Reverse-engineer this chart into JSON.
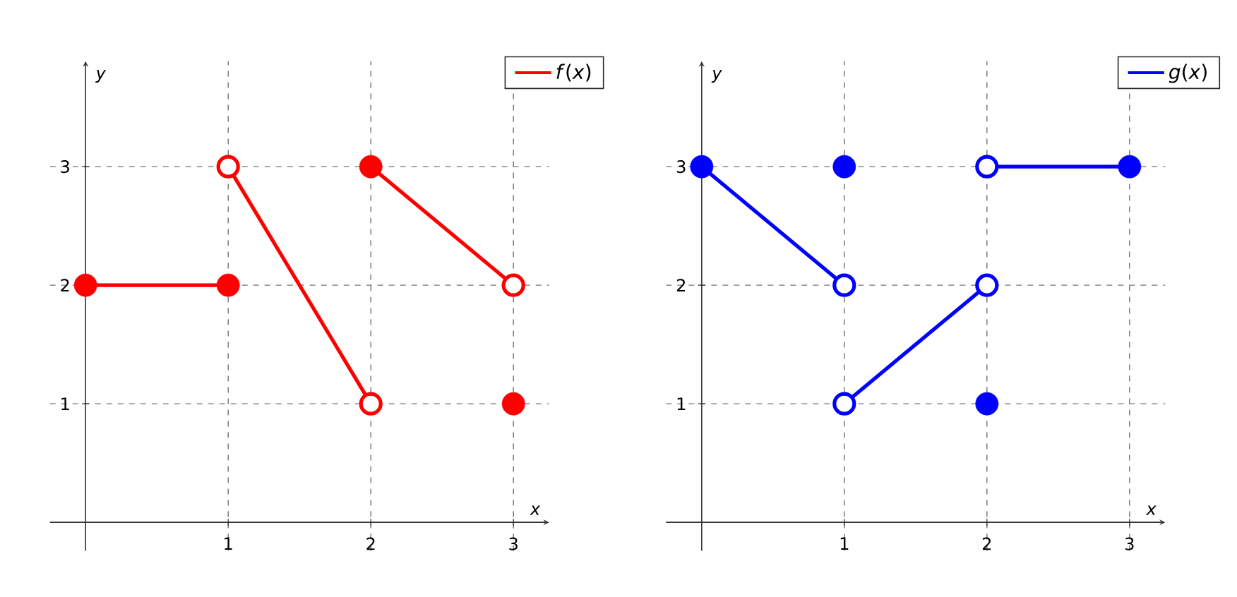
{
  "chart_data": [
    {
      "type": "line",
      "xlabel": "*x*",
      "ylabel": "*y*",
      "xlim": [
        -0.25,
        3.25
      ],
      "ylim": [
        -0.24,
        3.89
      ],
      "xticks": [
        1,
        2,
        3
      ],
      "yticks": [
        1,
        2,
        3
      ],
      "grid": true,
      "legend": "top right",
      "series": [
        {
          "name": "*f*(*x*)",
          "color": "#ff0000",
          "marker": "none",
          "x": [
            0,
            1,
            null,
            1,
            2,
            null,
            2,
            3
          ],
          "values": [
            2,
            2,
            null,
            3,
            1,
            null,
            3,
            2
          ]
        },
        {
          "type": "scatter",
          "color": "#ff0000",
          "marker": "circle",
          "x": [
            0,
            1,
            2,
            3
          ],
          "values": [
            2,
            2,
            3,
            1
          ]
        },
        {
          "type": "scatter",
          "color": "#ff0000",
          "marker": "open circle",
          "x": [
            1,
            2,
            3
          ],
          "values": [
            3,
            1,
            2
          ]
        }
      ]
    },
    {
      "type": "line",
      "xlabel": "*x*",
      "ylabel": "*y*",
      "xlim": [
        -0.25,
        3.25
      ],
      "ylim": [
        -0.24,
        3.89
      ],
      "xticks": [
        1,
        2,
        3
      ],
      "yticks": [
        1,
        2,
        3
      ],
      "grid": true,
      "legend": "top right",
      "series": [
        {
          "name": "*g*(*x*)",
          "color": "#0000ff",
          "marker": "none",
          "x": [
            0,
            1,
            null,
            1,
            2,
            null,
            2,
            3
          ],
          "values": [
            3,
            2,
            null,
            1,
            2,
            null,
            3,
            3
          ]
        },
        {
          "type": "scatter",
          "color": "#0000ff",
          "marker": "circle",
          "x": [
            0,
            1,
            2,
            3
          ],
          "values": [
            3,
            3,
            1,
            3
          ]
        },
        {
          "type": "scatter",
          "color": "#0000ff",
          "marker": "open circle",
          "x": [
            1,
            1,
            2,
            2
          ],
          "values": [
            2,
            1,
            2,
            3
          ]
        }
      ]
    }
  ]
}
